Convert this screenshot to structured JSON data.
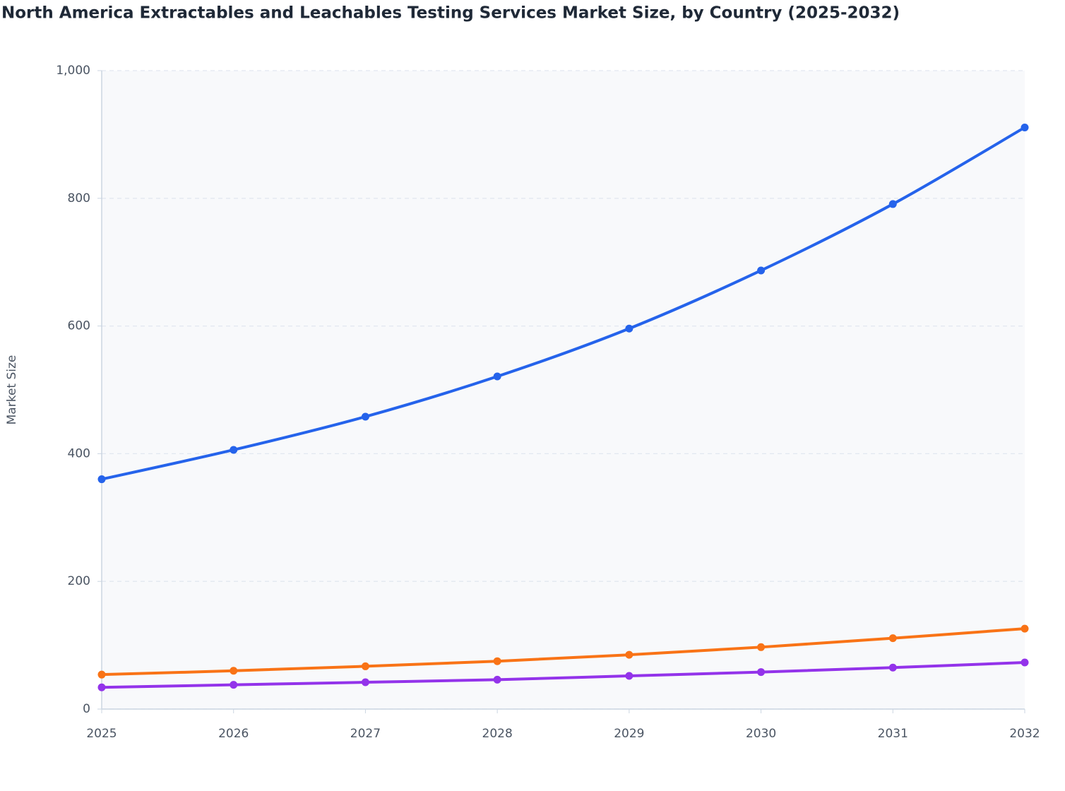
{
  "chart_data": {
    "type": "line",
    "title": "North America Extractables and Leachables Testing Services Market Size, by Country (2025-2032)",
    "y_label": "Market Size",
    "categories": [
      "2025",
      "2026",
      "2027",
      "2028",
      "2029",
      "2030",
      "2031",
      "2032"
    ],
    "series": [
      {
        "color": "#2563eb",
        "values": [
          360,
          406,
          458,
          521,
          596,
          687,
          791,
          911
        ]
      },
      {
        "color": "#f97316",
        "values": [
          54,
          60,
          67,
          75,
          85,
          97,
          111,
          126
        ]
      },
      {
        "color": "#9333ea",
        "values": [
          34,
          38,
          42,
          46,
          52,
          58,
          65,
          73
        ]
      }
    ],
    "ylim": [
      0,
      1000
    ],
    "yticks": [
      0,
      200,
      400,
      600,
      800,
      {
        "value": 1000,
        "label": "1,000"
      }
    ],
    "grid": true
  }
}
